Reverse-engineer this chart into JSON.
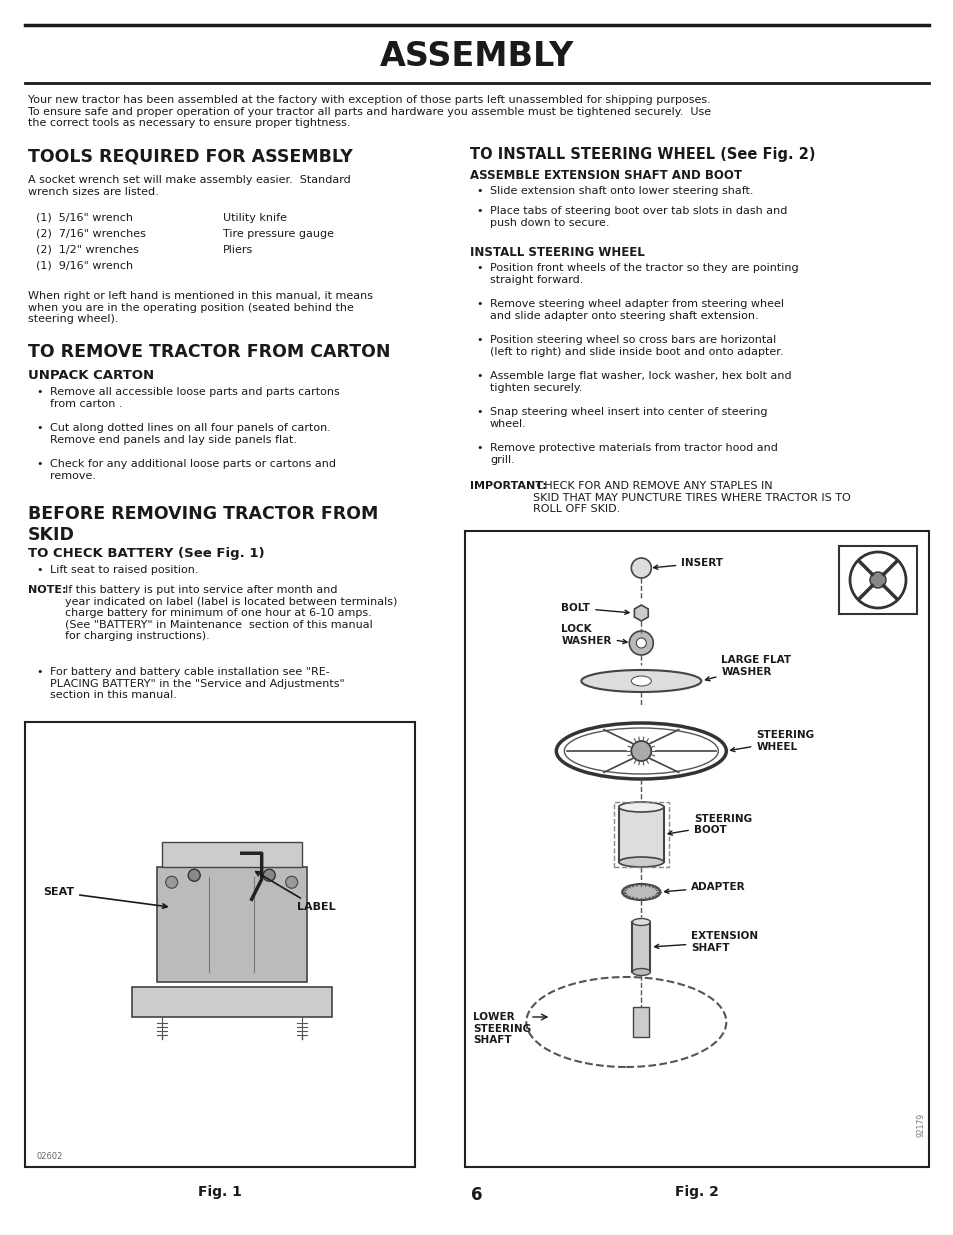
{
  "title": "ASSEMBLY",
  "bg_color": "#ffffff",
  "text_color": "#1a1a1a",
  "page_number": "6",
  "intro_text": "Your new tractor has been assembled at the factory with exception of those parts left unassembled for shipping purposes.\nTo ensure safe and proper operation of your tractor all parts and hardware you assemble must be tightened securely.  Use\nthe correct tools as necessary to ensure proper tightness.",
  "tools_left": [
    "(1)  5/16\" wrench",
    "(2)  7/16\" wrenches",
    "(2)  1/2\" wrenches",
    "(1)  9/16\" wrench"
  ],
  "tools_right": [
    "Utility knife",
    "Tire pressure gauge",
    "Pliers",
    ""
  ]
}
